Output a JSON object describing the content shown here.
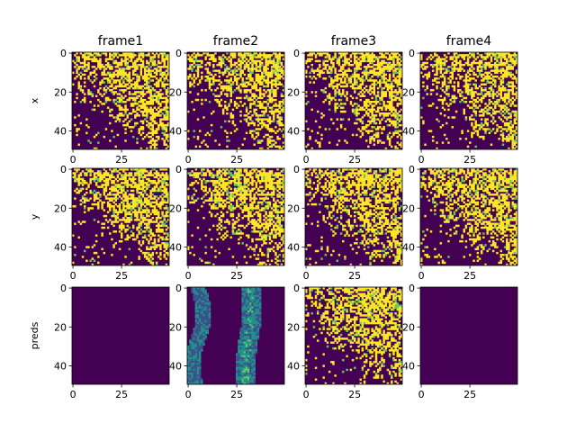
{
  "chart_data": {
    "type": "heatmap",
    "columns": [
      "frame1",
      "frame2",
      "frame3",
      "frame4"
    ],
    "rows": [
      "x",
      "y",
      "preds"
    ],
    "image_size": [
      50,
      50
    ],
    "xlim": [
      0,
      49
    ],
    "ylim": [
      49,
      0
    ],
    "xticks": [
      "0",
      "25"
    ],
    "yticks": [
      "0",
      "20",
      "40"
    ],
    "colormap": [
      "#440154",
      "#3b528b",
      "#21918c",
      "#5ec962",
      "#fde725"
    ],
    "empty_panels": [
      "preds-frame1",
      "preds-frame4"
    ]
  }
}
